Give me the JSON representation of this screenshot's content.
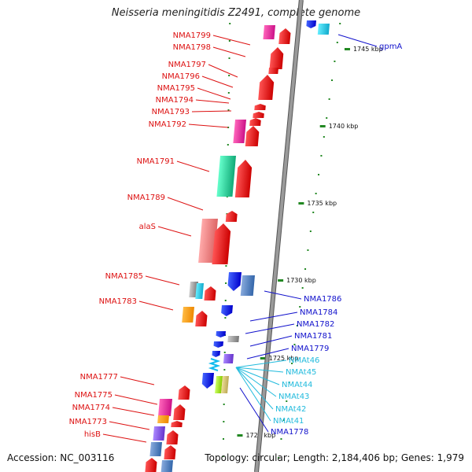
{
  "title": "Neisseria meningitidis Z2491, complete genome",
  "accession": "Accession: NC_003116",
  "stats": "Topology: circular; Length: 2,184,406 bp; Genes: 1,979",
  "scale": {
    "ticks": [
      {
        "label": "1745 kbp"
      },
      {
        "label": "1740 kbp"
      },
      {
        "label": "1735 kbp"
      },
      {
        "label": "1730 kbp"
      },
      {
        "label": "1725 kbp"
      },
      {
        "label": "1720 kbp"
      }
    ]
  },
  "genes_left": [
    {
      "label": "NMA1799"
    },
    {
      "label": "NMA1798"
    },
    {
      "label": "NMA1797"
    },
    {
      "label": "NMA1796"
    },
    {
      "label": "NMA1795"
    },
    {
      "label": "NMA1794"
    },
    {
      "label": "NMA1793"
    },
    {
      "label": "NMA1792"
    },
    {
      "label": "NMA1791"
    },
    {
      "label": "NMA1789"
    },
    {
      "label": "alaS"
    },
    {
      "label": "NMA1785"
    },
    {
      "label": "NMA1783"
    },
    {
      "label": "NMA1777"
    },
    {
      "label": "NMA1775"
    },
    {
      "label": "NMA1774"
    },
    {
      "label": "NMA1773"
    },
    {
      "label": "hisB"
    }
  ],
  "genes_right": [
    {
      "label": "gpmA"
    },
    {
      "label": "NMA1786"
    },
    {
      "label": "NMA1784"
    },
    {
      "label": "NMA1782"
    },
    {
      "label": "NMA1781"
    },
    {
      "label": "NMA1779"
    },
    {
      "label": "NMA1778"
    }
  ],
  "trnas": [
    {
      "label": "NMAt46"
    },
    {
      "label": "NMAt45"
    },
    {
      "label": "NMAt44"
    },
    {
      "label": "NMAt43"
    },
    {
      "label": "NMAt42"
    },
    {
      "label": "NMAt41"
    }
  ],
  "colors": {
    "left_label": "#dd1111",
    "right_label": "#1111cc",
    "trna_label": "#22bbdd",
    "tick": "#228822",
    "backbone": "#9a9a9a"
  }
}
